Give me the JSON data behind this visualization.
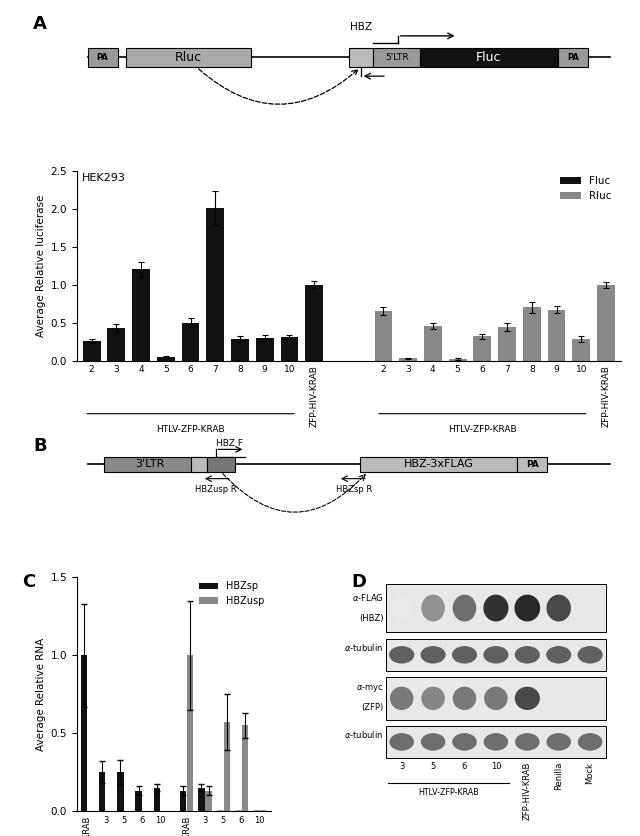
{
  "panel_A_fluc_values": [
    0.26,
    0.43,
    1.2,
    0.05,
    0.5,
    2.01,
    0.28,
    0.3,
    0.31,
    1.0
  ],
  "panel_A_fluc_errors": [
    0.03,
    0.05,
    0.1,
    0.01,
    0.06,
    0.22,
    0.04,
    0.04,
    0.03,
    0.05
  ],
  "panel_A_rluc_values": [
    0.65,
    0.03,
    0.46,
    0.02,
    0.32,
    0.44,
    0.7,
    0.67,
    0.28,
    1.0
  ],
  "panel_A_rluc_errors": [
    0.05,
    0.01,
    0.04,
    0.01,
    0.03,
    0.05,
    0.07,
    0.05,
    0.04,
    0.04
  ],
  "panel_C_sp_vals": [
    1.0,
    0.25,
    0.25,
    0.13,
    0.15
  ],
  "panel_C_sp_errs": [
    0.33,
    0.07,
    0.08,
    0.03,
    0.02
  ],
  "panel_C_usp_vals": [
    0.0,
    0.0,
    0.0,
    0.0,
    0.0
  ],
  "panel_C_usp_errs": [
    0.0,
    0.0,
    0.0,
    0.0,
    0.0
  ],
  "panel_C_usp_vals2": [
    1.0,
    0.13,
    0.57,
    0.55,
    0.0
  ],
  "panel_C_usp_errs2": [
    0.35,
    0.03,
    0.18,
    0.08,
    0.0
  ],
  "fluc_color": "#111111",
  "rluc_color": "#888888",
  "hbzsp_color": "#111111",
  "hbzusp_color": "#888888",
  "bg": "#ffffff"
}
